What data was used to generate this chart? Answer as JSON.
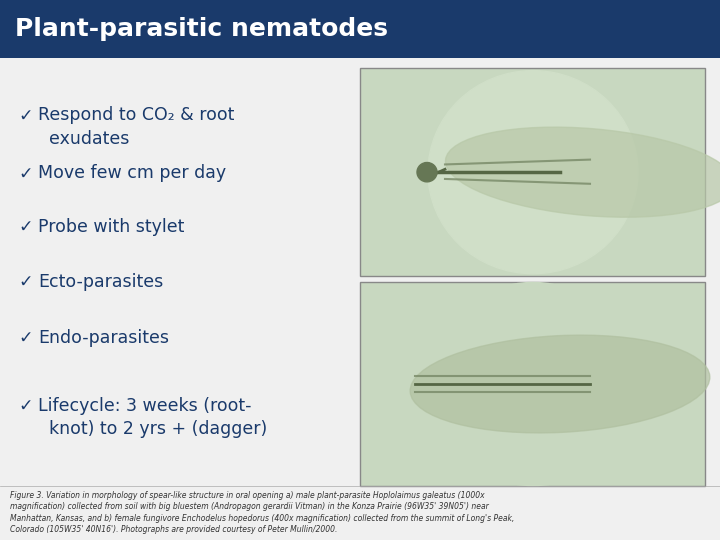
{
  "title": "Plant-parasitic nematodes",
  "title_bg_color": "#1a3a6b",
  "title_text_color": "#ffffff",
  "slide_bg_color": "#f0f0f0",
  "bullet_color": "#1a3a6b",
  "text_color": "#1a3a6b",
  "bullets": [
    "Respond to CO₂ & root\n  exudates",
    "Move few cm per day",
    "Probe with stylet",
    "Ecto-parasites",
    "Endo-parasites",
    "Lifecycle: 3 weeks (root-\n  knot) to 2 yrs + (dagger)"
  ],
  "caption": "Figure 3. Variation in morphology of spear-like structure in oral opening a) male plant-parasite Hoplolaimus galeatus (1000x\nmagnification) collected from soil with big bluestem (Andropagon gerardii Vitman) in the Konza Prairie (96W35' 39N05') near\nManhattan, Kansas, and b) female fungivore Enchodelus hopedorus (400x magnification) collected from the summit of Long's Peak,\nColorado (105W35' 40N16'). Photographs are provided courtesy of Peter Mullin/2000.",
  "caption_fontsize": 5.5,
  "title_fontsize": 18,
  "bullet_fontsize": 12.5
}
